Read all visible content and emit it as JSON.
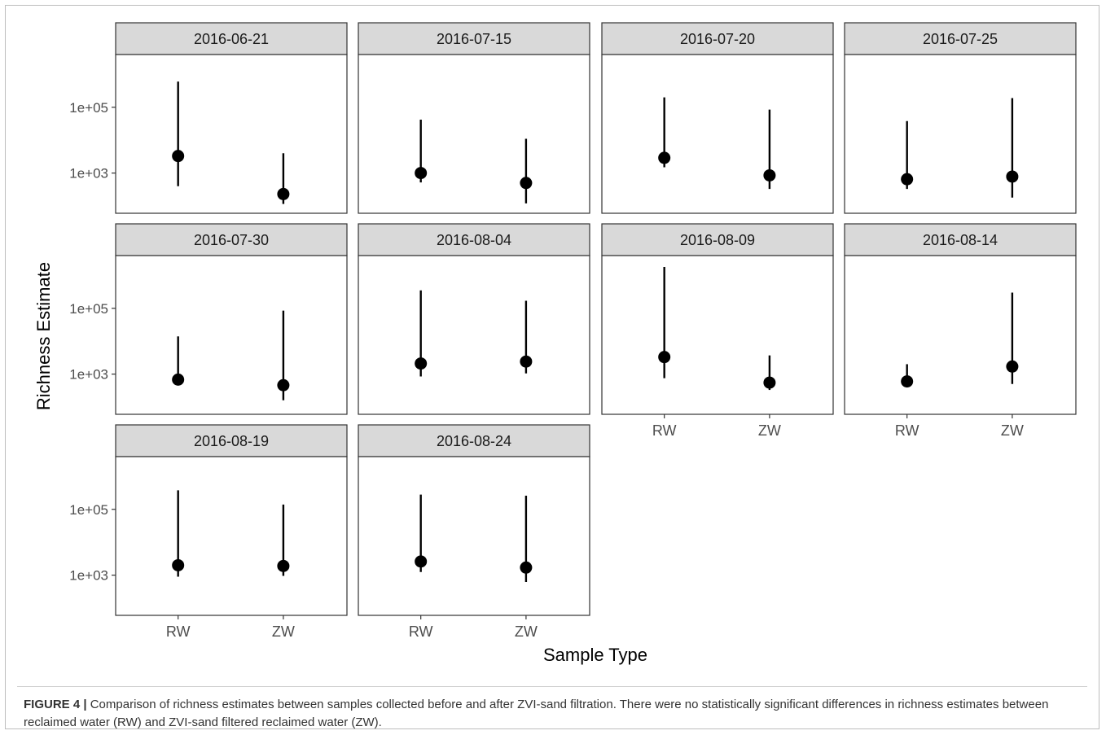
{
  "chart_data": {
    "type": "scatter",
    "subtype": "faceted point-range",
    "xlabel": "Sample Type",
    "ylabel": "Richness Estimate",
    "yscale": "log10",
    "ylim": [
      60,
      4000000
    ],
    "ytick_values": [
      1000,
      100000
    ],
    "ytick_labels": [
      "1e+03",
      "1e+05"
    ],
    "categories": [
      "RW",
      "ZW"
    ],
    "grid": false,
    "facets": [
      {
        "label": "2016-06-21",
        "points": [
          {
            "x": "RW",
            "y": 3300,
            "low": 400,
            "high": 600000
          },
          {
            "x": "ZW",
            "y": 230,
            "low": 115,
            "high": 4000
          }
        ]
      },
      {
        "label": "2016-07-15",
        "points": [
          {
            "x": "RW",
            "y": 1000,
            "low": 520,
            "high": 42000
          },
          {
            "x": "ZW",
            "y": 500,
            "low": 120,
            "high": 11000
          }
        ]
      },
      {
        "label": "2016-07-20",
        "points": [
          {
            "x": "RW",
            "y": 2900,
            "low": 1500,
            "high": 200000
          },
          {
            "x": "ZW",
            "y": 850,
            "low": 330,
            "high": 85000
          }
        ]
      },
      {
        "label": "2016-07-25",
        "points": [
          {
            "x": "RW",
            "y": 650,
            "low": 330,
            "high": 38000
          },
          {
            "x": "ZW",
            "y": 780,
            "low": 180,
            "high": 190000
          }
        ]
      },
      {
        "label": "2016-07-30",
        "points": [
          {
            "x": "RW",
            "y": 680,
            "low": null,
            "high": 14000
          },
          {
            "x": "ZW",
            "y": 460,
            "low": 160,
            "high": 85000
          }
        ]
      },
      {
        "label": "2016-08-04",
        "points": [
          {
            "x": "RW",
            "y": 2100,
            "low": 850,
            "high": 350000
          },
          {
            "x": "ZW",
            "y": 2400,
            "low": 1050,
            "high": 170000
          }
        ]
      },
      {
        "label": "2016-08-09",
        "points": [
          {
            "x": "RW",
            "y": 3300,
            "low": 750,
            "high": 1800000
          },
          {
            "x": "ZW",
            "y": 550,
            "low": 330,
            "high": 3700
          }
        ]
      },
      {
        "label": "2016-08-14",
        "points": [
          {
            "x": "RW",
            "y": 600,
            "low": null,
            "high": 2000
          },
          {
            "x": "ZW",
            "y": 1700,
            "low": 500,
            "high": 300000
          }
        ]
      },
      {
        "label": "2016-08-19",
        "points": [
          {
            "x": "RW",
            "y": 2000,
            "low": 900,
            "high": 380000
          },
          {
            "x": "ZW",
            "y": 1900,
            "low": 950,
            "high": 140000
          }
        ]
      },
      {
        "label": "2016-08-24",
        "points": [
          {
            "x": "RW",
            "y": 2600,
            "low": 1250,
            "high": 280000
          },
          {
            "x": "ZW",
            "y": 1700,
            "low": 620,
            "high": 260000
          }
        ]
      }
    ]
  },
  "caption": {
    "label": "FIGURE 4 |",
    "text": "Comparison of richness estimates between samples collected before and after ZVI-sand filtration. There were no statistically significant differences in richness estimates between reclaimed water (RW) and ZVI-sand filtered reclaimed water (ZW)."
  },
  "colors": {
    "strip_fill": "#d9d9d9",
    "panel_border": "#333333",
    "point": "#000000",
    "tick_text": "#4d4d4d"
  }
}
